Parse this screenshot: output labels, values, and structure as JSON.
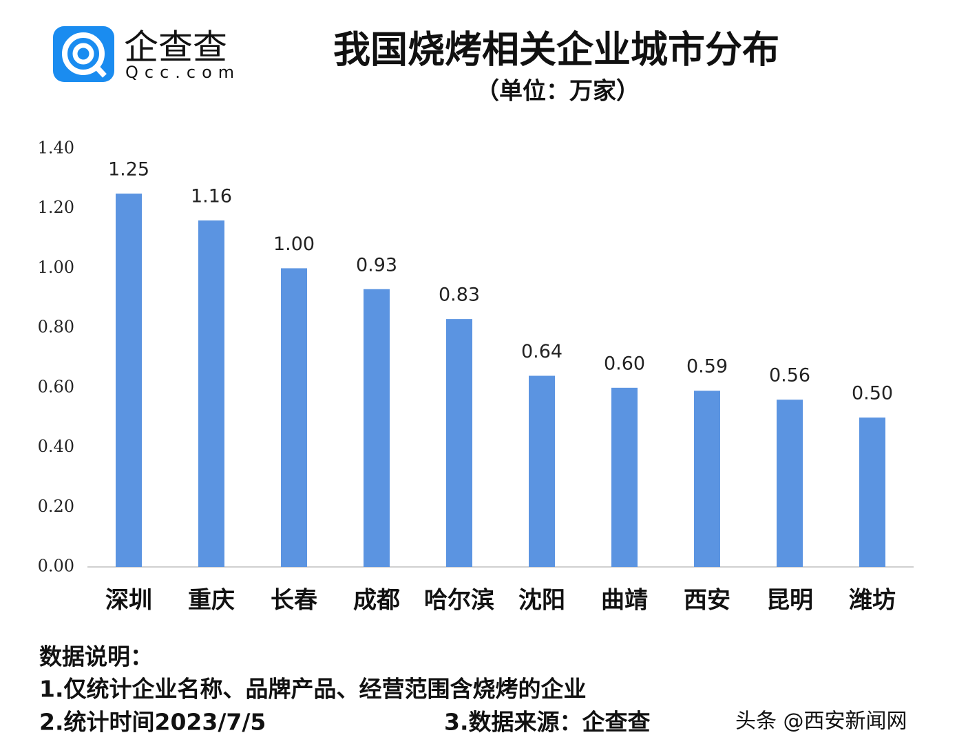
{
  "logo": {
    "name": "企查查",
    "domain": "Qcc.com"
  },
  "chart_data": {
    "type": "bar",
    "title": "我国烧烤相关企业城市分布",
    "subtitle": "（单位：万家）",
    "categories": [
      "深圳",
      "重庆",
      "长春",
      "成都",
      "哈尔滨",
      "沈阳",
      "曲靖",
      "西安",
      "昆明",
      "潍坊"
    ],
    "values": [
      1.25,
      1.16,
      1.0,
      0.93,
      0.83,
      0.64,
      0.6,
      0.59,
      0.56,
      0.5
    ],
    "value_labels": [
      "1.25",
      "1.16",
      "1.00",
      "0.93",
      "0.83",
      "0.64",
      "0.60",
      "0.59",
      "0.56",
      "0.50"
    ],
    "color": "#5b94e1",
    "ylim": [
      0,
      1.4
    ],
    "yticks": [
      {
        "value": 0,
        "label": "0.00"
      },
      {
        "value": 0.2,
        "label": "0.20"
      },
      {
        "value": 0.4,
        "label": "0.40"
      },
      {
        "value": 0.6,
        "label": "0.60"
      },
      {
        "value": 0.8,
        "label": "0.80"
      },
      {
        "value": 1.0,
        "label": "1.00"
      },
      {
        "value": 1.2,
        "label": "1.20"
      },
      {
        "value": 1.4,
        "label": "1.40"
      }
    ],
    "grid": false
  },
  "notes": {
    "heading": "数据说明：",
    "line1": "1.仅统计企业名称、品牌产品、经营范围含烧烤的企业",
    "line2": "2.统计时间2023/7/5",
    "line3": "3.数据来源：企查查"
  },
  "watermark": "头条 @西安新闻网"
}
